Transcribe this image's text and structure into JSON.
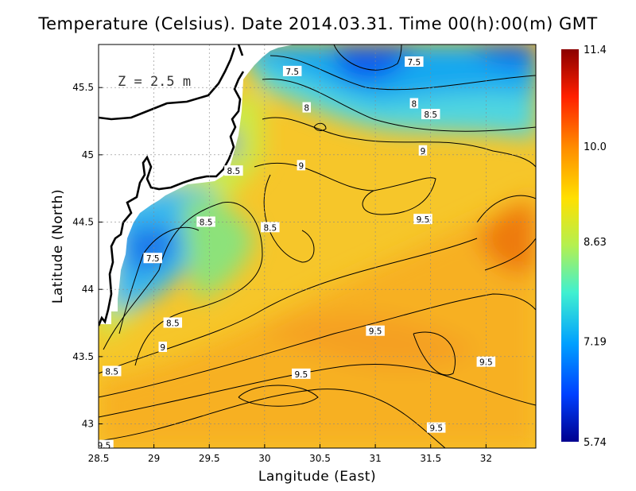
{
  "title": "Temperature (Celsius). Date 2014.03.31. Time 00(h):00(m) GMT",
  "depth_label": "Z = 2.5 m",
  "x_axis": {
    "label": "Langitude (East)",
    "ticks": [
      "28.5",
      "29",
      "29.5",
      "30",
      "30.5",
      "31",
      "31.5",
      "32"
    ],
    "range": [
      28.5,
      32.45
    ]
  },
  "y_axis": {
    "label": "Latitude (North)",
    "ticks": [
      "43",
      "43.5",
      "44",
      "44.5",
      "45",
      "45.5"
    ],
    "range": [
      42.82,
      45.82
    ]
  },
  "colorbar": {
    "min": 5.74,
    "max": 11.4,
    "labels": [
      "11.4",
      "10.0",
      "8.63",
      "7.19",
      "5.74"
    ],
    "colors": [
      "#8b0000",
      "#ff2000",
      "#ff8c00",
      "#ffe000",
      "#b4f050",
      "#40f0d0",
      "#00a0ff",
      "#0040ff",
      "#00008f"
    ]
  },
  "contour_labels": [
    {
      "text": "7.5",
      "lon": 31.35,
      "lat": 45.69
    },
    {
      "text": "7.5",
      "lon": 30.25,
      "lat": 45.62
    },
    {
      "text": "8",
      "lon": 30.38,
      "lat": 45.35
    },
    {
      "text": "8",
      "lon": 31.35,
      "lat": 45.38
    },
    {
      "text": "8.5",
      "lon": 31.5,
      "lat": 45.3
    },
    {
      "text": "9",
      "lon": 31.43,
      "lat": 45.03
    },
    {
      "text": "9",
      "lon": 30.33,
      "lat": 44.92
    },
    {
      "text": "8.5",
      "lon": 29.72,
      "lat": 44.88
    },
    {
      "text": "8.5",
      "lon": 29.47,
      "lat": 44.5
    },
    {
      "text": "8.5",
      "lon": 30.05,
      "lat": 44.46
    },
    {
      "text": "7.5",
      "lon": 28.99,
      "lat": 44.23
    },
    {
      "text": "9.5",
      "lon": 31.43,
      "lat": 44.52
    },
    {
      "text": "8.5",
      "lon": 29.17,
      "lat": 43.75
    },
    {
      "text": "9",
      "lon": 29.08,
      "lat": 43.57
    },
    {
      "text": "9.5",
      "lon": 31.0,
      "lat": 43.69
    },
    {
      "text": "9.5",
      "lon": 32.0,
      "lat": 43.46
    },
    {
      "text": "9.5",
      "lon": 30.33,
      "lat": 43.37
    },
    {
      "text": "8.5",
      "lon": 28.62,
      "lat": 43.39
    },
    {
      "text": "9.5",
      "lon": 31.55,
      "lat": 42.97
    },
    {
      "text": "9.5",
      "lon": 28.55,
      "lat": 42.84
    }
  ]
}
